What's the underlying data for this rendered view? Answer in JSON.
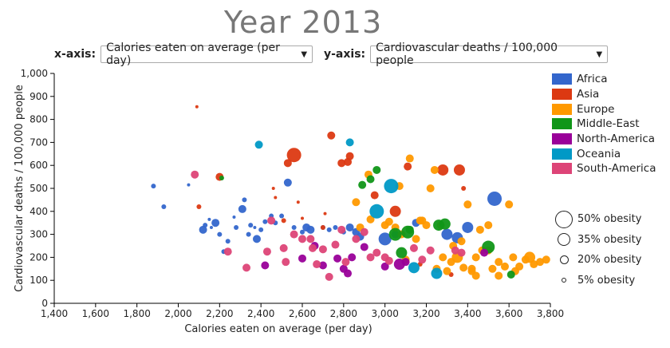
{
  "title": "Year 2013",
  "x_selector": {
    "label": "x-axis:",
    "value": "Calories eaten on average (per day)"
  },
  "y_selector": {
    "label": "y-axis:",
    "value": "Cardiovascular deaths / 100,000 people"
  },
  "colors": {
    "Africa": "#3366cc",
    "Asia": "#dc3912",
    "Europe": "#ff9900",
    "Middle-East": "#109618",
    "North-America": "#990099",
    "Oceania": "#0099c6",
    "South-America": "#dd4477"
  },
  "size_legend": [
    "50% obesity",
    "35% obesity",
    "20% obesity",
    "5% obesity"
  ],
  "chart_data": {
    "type": "scatter",
    "title": "Year 2013",
    "xlabel": "Calories eaten on average (per day)",
    "ylabel": "Cardiovascular deaths / 100,000 people",
    "xlim": [
      1400,
      3800
    ],
    "ylim": [
      0,
      1000
    ],
    "x_ticks": [
      "1,400",
      "1,600",
      "1,800",
      "2,000",
      "2,200",
      "2,400",
      "2,600",
      "2,800",
      "3,000",
      "3,200",
      "3,400",
      "3,600",
      "3,800"
    ],
    "y_ticks": [
      "0",
      "100",
      "200",
      "300",
      "400",
      "500",
      "600",
      "700",
      "800",
      "900",
      "1,000"
    ],
    "legend": [
      "Africa",
      "Asia",
      "Europe",
      "Middle-East",
      "North-America",
      "Oceania",
      "South-America"
    ],
    "legend_position": "right",
    "series": [
      {
        "name": "Africa",
        "points": [
          [
            1880,
            510,
            3
          ],
          [
            1930,
            420,
            3
          ],
          [
            2050,
            515,
            2
          ],
          [
            2120,
            320,
            5
          ],
          [
            2130,
            340,
            3
          ],
          [
            2150,
            365,
            2
          ],
          [
            2160,
            330,
            2
          ],
          [
            2180,
            350,
            5
          ],
          [
            2200,
            300,
            3
          ],
          [
            2220,
            225,
            3
          ],
          [
            2240,
            270,
            3
          ],
          [
            2270,
            375,
            2
          ],
          [
            2280,
            330,
            3
          ],
          [
            2310,
            410,
            5
          ],
          [
            2320,
            450,
            3
          ],
          [
            2340,
            300,
            3
          ],
          [
            2350,
            340,
            3
          ],
          [
            2370,
            330,
            2
          ],
          [
            2380,
            280,
            5
          ],
          [
            2400,
            320,
            3
          ],
          [
            2420,
            355,
            3
          ],
          [
            2450,
            380,
            3
          ],
          [
            2470,
            350,
            3
          ],
          [
            2500,
            380,
            3
          ],
          [
            2530,
            525,
            5
          ],
          [
            2560,
            330,
            3
          ],
          [
            2600,
            310,
            3
          ],
          [
            2620,
            330,
            5
          ],
          [
            2640,
            320,
            5
          ],
          [
            2700,
            330,
            3
          ],
          [
            2730,
            320,
            3
          ],
          [
            2760,
            330,
            3
          ],
          [
            2800,
            310,
            3
          ],
          [
            2830,
            330,
            5
          ],
          [
            2860,
            310,
            5
          ],
          [
            2880,
            290,
            5
          ],
          [
            3000,
            280,
            8
          ],
          [
            3050,
            300,
            5
          ],
          [
            3150,
            350,
            5
          ],
          [
            3300,
            300,
            7
          ],
          [
            3350,
            285,
            7
          ],
          [
            3400,
            330,
            7
          ],
          [
            3530,
            455,
            9
          ]
        ]
      },
      {
        "name": "Asia",
        "points": [
          [
            2090,
            855,
            2
          ],
          [
            2100,
            420,
            3
          ],
          [
            2200,
            550,
            5
          ],
          [
            2460,
            500,
            2
          ],
          [
            2470,
            460,
            2
          ],
          [
            2510,
            360,
            3
          ],
          [
            2530,
            610,
            5
          ],
          [
            2560,
            645,
            9
          ],
          [
            2580,
            440,
            2
          ],
          [
            2600,
            370,
            2
          ],
          [
            2700,
            330,
            3
          ],
          [
            2710,
            390,
            2
          ],
          [
            2740,
            730,
            5
          ],
          [
            2790,
            610,
            5
          ],
          [
            2820,
            615,
            5
          ],
          [
            2830,
            640,
            5
          ],
          [
            2950,
            470,
            5
          ],
          [
            3050,
            400,
            7
          ],
          [
            3110,
            595,
            5
          ],
          [
            3170,
            170,
            3
          ],
          [
            3280,
            580,
            7
          ],
          [
            3320,
            125,
            3
          ],
          [
            3360,
            580,
            7
          ],
          [
            3380,
            500,
            3
          ]
        ]
      },
      {
        "name": "Europe",
        "points": [
          [
            2880,
            330,
            5
          ],
          [
            2930,
            365,
            5
          ],
          [
            3000,
            340,
            5
          ],
          [
            3020,
            355,
            5
          ],
          [
            3050,
            330,
            5
          ],
          [
            3080,
            300,
            5
          ],
          [
            3100,
            190,
            5
          ],
          [
            3150,
            280,
            5
          ],
          [
            3180,
            360,
            5
          ],
          [
            3200,
            340,
            5
          ],
          [
            3220,
            500,
            5
          ],
          [
            3240,
            580,
            5
          ],
          [
            3270,
            340,
            5
          ],
          [
            3280,
            200,
            5
          ],
          [
            3300,
            140,
            5
          ],
          [
            3330,
            250,
            5
          ],
          [
            3350,
            200,
            7
          ],
          [
            3370,
            270,
            5
          ],
          [
            3380,
            155,
            5
          ],
          [
            3400,
            430,
            5
          ],
          [
            3420,
            150,
            5
          ],
          [
            3440,
            200,
            5
          ],
          [
            3460,
            320,
            5
          ],
          [
            3470,
            230,
            5
          ],
          [
            3500,
            230,
            5
          ],
          [
            3520,
            150,
            5
          ],
          [
            3550,
            180,
            5
          ],
          [
            3580,
            160,
            5
          ],
          [
            3600,
            430,
            5
          ],
          [
            3620,
            200,
            5
          ],
          [
            3650,
            160,
            5
          ],
          [
            3680,
            190,
            5
          ],
          [
            3700,
            200,
            7
          ],
          [
            3720,
            170,
            5
          ],
          [
            3750,
            180,
            5
          ],
          [
            3780,
            190,
            5
          ],
          [
            2860,
            440,
            5
          ],
          [
            2920,
            560,
            5
          ],
          [
            3070,
            510,
            5
          ],
          [
            3120,
            630,
            5
          ],
          [
            3170,
            360,
            5
          ],
          [
            3250,
            150,
            5
          ],
          [
            3320,
            180,
            5
          ],
          [
            3420,
            140,
            5
          ],
          [
            3440,
            120,
            5
          ],
          [
            3500,
            340,
            5
          ],
          [
            3550,
            120,
            5
          ],
          [
            3630,
            140,
            5
          ]
        ]
      },
      {
        "name": "Middle-East",
        "points": [
          [
            2210,
            545,
            3
          ],
          [
            2890,
            515,
            5
          ],
          [
            2930,
            540,
            5
          ],
          [
            2960,
            580,
            5
          ],
          [
            3050,
            300,
            8
          ],
          [
            3080,
            220,
            7
          ],
          [
            3110,
            310,
            8
          ],
          [
            3120,
            320,
            5
          ],
          [
            3260,
            340,
            7
          ],
          [
            3290,
            345,
            7
          ],
          [
            3500,
            245,
            8
          ],
          [
            3610,
            125,
            5
          ]
        ]
      },
      {
        "name": "North-America",
        "points": [
          [
            2420,
            165,
            5
          ],
          [
            2600,
            195,
            5
          ],
          [
            2660,
            250,
            5
          ],
          [
            2700,
            165,
            5
          ],
          [
            2770,
            195,
            5
          ],
          [
            2800,
            150,
            5
          ],
          [
            2820,
            130,
            5
          ],
          [
            2840,
            200,
            5
          ],
          [
            2900,
            245,
            5
          ],
          [
            3000,
            160,
            5
          ],
          [
            3070,
            170,
            7
          ],
          [
            3100,
            180,
            5
          ],
          [
            3480,
            220,
            5
          ]
        ]
      },
      {
        "name": "Oceania",
        "points": [
          [
            2390,
            690,
            5
          ],
          [
            2830,
            700,
            5
          ],
          [
            2960,
            400,
            9
          ],
          [
            3030,
            510,
            9
          ],
          [
            3140,
            155,
            7
          ],
          [
            3250,
            130,
            7
          ]
        ]
      },
      {
        "name": "South-America",
        "points": [
          [
            2080,
            560,
            5
          ],
          [
            2240,
            225,
            5
          ],
          [
            2330,
            155,
            5
          ],
          [
            2430,
            225,
            5
          ],
          [
            2450,
            360,
            5
          ],
          [
            2510,
            240,
            5
          ],
          [
            2520,
            180,
            5
          ],
          [
            2560,
            300,
            5
          ],
          [
            2600,
            280,
            5
          ],
          [
            2640,
            280,
            5
          ],
          [
            2650,
            240,
            5
          ],
          [
            2670,
            170,
            5
          ],
          [
            2700,
            235,
            5
          ],
          [
            2730,
            115,
            5
          ],
          [
            2760,
            255,
            5
          ],
          [
            2790,
            320,
            5
          ],
          [
            2810,
            180,
            5
          ],
          [
            2860,
            280,
            5
          ],
          [
            2900,
            310,
            5
          ],
          [
            2930,
            200,
            5
          ],
          [
            2960,
            220,
            5
          ],
          [
            3000,
            200,
            5
          ],
          [
            3020,
            185,
            5
          ],
          [
            3140,
            240,
            5
          ],
          [
            3180,
            190,
            5
          ],
          [
            3220,
            230,
            5
          ],
          [
            3340,
            230,
            5
          ],
          [
            3370,
            220,
            5
          ]
        ]
      }
    ]
  }
}
